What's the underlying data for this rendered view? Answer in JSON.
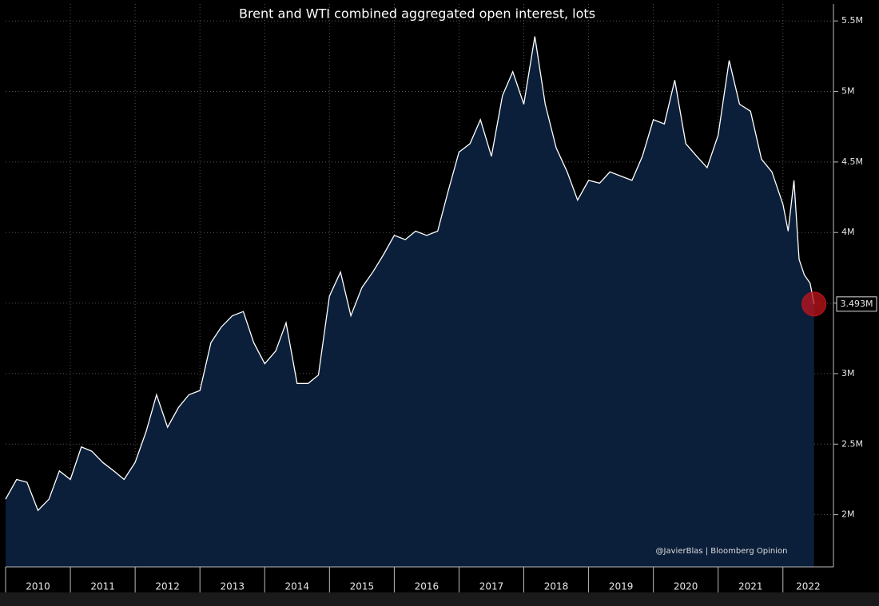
{
  "chart_data": {
    "type": "area",
    "title": "Brent and WTI combined aggregated open interest, lots",
    "annotation": "@JavierBlas | Bloomberg Opinion",
    "x": [
      2010.0,
      2010.17,
      2010.33,
      2010.5,
      2010.67,
      2010.83,
      2011.0,
      2011.17,
      2011.33,
      2011.5,
      2011.67,
      2011.83,
      2012.0,
      2012.17,
      2012.33,
      2012.5,
      2012.67,
      2012.83,
      2013.0,
      2013.17,
      2013.33,
      2013.5,
      2013.67,
      2013.83,
      2014.0,
      2014.17,
      2014.33,
      2014.5,
      2014.67,
      2014.83,
      2015.0,
      2015.17,
      2015.33,
      2015.5,
      2015.67,
      2015.83,
      2016.0,
      2016.17,
      2016.33,
      2016.5,
      2016.67,
      2016.83,
      2017.0,
      2017.17,
      2017.33,
      2017.5,
      2017.67,
      2017.83,
      2018.0,
      2018.17,
      2018.33,
      2018.5,
      2018.67,
      2018.83,
      2019.0,
      2019.17,
      2019.33,
      2019.5,
      2019.67,
      2019.83,
      2020.0,
      2020.17,
      2020.33,
      2020.5,
      2020.67,
      2020.83,
      2021.0,
      2021.17,
      2021.33,
      2021.5,
      2021.67,
      2021.83,
      2022.0,
      2022.08,
      2022.17,
      2022.25,
      2022.33,
      2022.42,
      2022.48
    ],
    "series": [
      {
        "color": "#ffffff",
        "fill": "#0b1f3a",
        "values": [
          2110000,
          2250000,
          2230000,
          2030000,
          2110000,
          2310000,
          2250000,
          2480000,
          2450000,
          2370000,
          2310000,
          2250000,
          2370000,
          2590000,
          2850000,
          2620000,
          2760000,
          2850000,
          2880000,
          3220000,
          3330000,
          3410000,
          3440000,
          3220000,
          3070000,
          3160000,
          3360000,
          2930000,
          2930000,
          2990000,
          3550000,
          3720000,
          3410000,
          3610000,
          3720000,
          3840000,
          3980000,
          3950000,
          4010000,
          3980000,
          4010000,
          4290000,
          4570000,
          4630000,
          4800000,
          4540000,
          4970000,
          5140000,
          4910000,
          5390000,
          4910000,
          4600000,
          4430000,
          4230000,
          4370000,
          4350000,
          4430000,
          4400000,
          4370000,
          4540000,
          4800000,
          4770000,
          5080000,
          4630000,
          4540000,
          4460000,
          4690000,
          5220000,
          4910000,
          4860000,
          4520000,
          4430000,
          4200000,
          4010000,
          4370000,
          3810000,
          3700000,
          3640000,
          3493000
        ],
        "value_labels": [
          null,
          null,
          null,
          null,
          null,
          null,
          null,
          null,
          null,
          null,
          null,
          null,
          null,
          null,
          null,
          null,
          null,
          null,
          null,
          null,
          null,
          null,
          null,
          null,
          null,
          null,
          null,
          null,
          null,
          null,
          null,
          null,
          null,
          null,
          null,
          null,
          null,
          null,
          null,
          null,
          null,
          null,
          null,
          null,
          null,
          null,
          null,
          null,
          null,
          null,
          null,
          null,
          null,
          null,
          null,
          null,
          null,
          null,
          null,
          null,
          null,
          null,
          null,
          null,
          null,
          null,
          null,
          null,
          null,
          null,
          null,
          null,
          null,
          null,
          null,
          null,
          null,
          null,
          "3.493M"
        ],
        "marker_color": "#c0141c"
      }
    ],
    "xlim": [
      2010,
      2022.78
    ],
    "xticks": [
      {
        "value": 2010,
        "label": "2010"
      },
      {
        "value": 2011,
        "label": "2011"
      },
      {
        "value": 2012,
        "label": "2012"
      },
      {
        "value": 2013,
        "label": "2013"
      },
      {
        "value": 2014,
        "label": "2014"
      },
      {
        "value": 2015,
        "label": "2015"
      },
      {
        "value": 2016,
        "label": "2016"
      },
      {
        "value": 2017,
        "label": "2017"
      },
      {
        "value": 2018,
        "label": "2018"
      },
      {
        "value": 2019,
        "label": "2019"
      },
      {
        "value": 2020,
        "label": "2020"
      },
      {
        "value": 2021,
        "label": "2021"
      },
      {
        "value": 2022,
        "label": "2022"
      }
    ],
    "ylim": [
      1630000,
      5620000
    ],
    "yticks": [
      {
        "value": 2000000,
        "label": "2M"
      },
      {
        "value": 2500000,
        "label": "2.5M"
      },
      {
        "value": 3000000,
        "label": "3M"
      },
      {
        "value": 3500000,
        "label": "3.5M"
      },
      {
        "value": 4000000,
        "label": "4M"
      },
      {
        "value": 4500000,
        "label": "4.5M"
      },
      {
        "value": 5000000,
        "label": "5M"
      },
      {
        "value": 5500000,
        "label": "5.5M"
      }
    ],
    "grid": true
  }
}
